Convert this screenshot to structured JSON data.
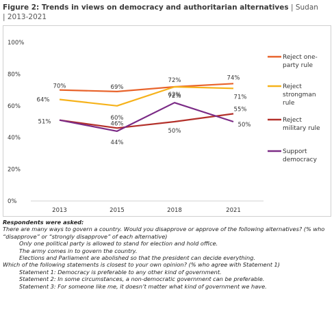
{
  "figure": {
    "title": "Figure 2: Trends in views on democracy and authoritarian alternatives",
    "subtitle_country": "| Sudan",
    "subtitle_years": "| 2013-2021"
  },
  "colors": {
    "reject_one_party": "#e8632b",
    "reject_strongman": "#f6b21a",
    "reject_military": "#b3302a",
    "support_democracy": "#7b2b86"
  },
  "chart_data": {
    "type": "line",
    "categories": [
      "2013",
      "2015",
      "2018",
      "2021"
    ],
    "ylim": [
      0,
      100
    ],
    "yticks": [
      "0%",
      "20%",
      "40%",
      "60%",
      "80%",
      "100%"
    ],
    "ytick_values": [
      0,
      20,
      40,
      60,
      80,
      100
    ],
    "grid": false,
    "legend_position": "right",
    "series": [
      {
        "key": "reject_one_party",
        "name": "Reject one-party rule",
        "legend_lines": [
          "Reject one-",
          "party rule"
        ],
        "values": [
          70,
          69,
          72,
          74
        ],
        "labels": [
          "70%",
          "69%",
          "72%",
          "74%"
        ]
      },
      {
        "key": "reject_strongman",
        "name": "Reject strongman rule",
        "legend_lines": [
          "Reject",
          "strongman",
          "rule"
        ],
        "values": [
          64,
          60,
          72,
          71
        ],
        "labels": [
          "64%",
          "60%",
          "72%",
          "71%"
        ]
      },
      {
        "key": "reject_military",
        "name": "Reject military rule",
        "legend_lines": [
          "Reject",
          "military rule"
        ],
        "values": [
          51,
          46,
          50,
          55
        ],
        "labels": [
          "51%",
          "46%",
          "50%",
          "55%"
        ]
      },
      {
        "key": "support_democracy",
        "name": "Support democracy",
        "legend_lines": [
          "Support",
          "democracy"
        ],
        "values": [
          51,
          44,
          62,
          50
        ],
        "labels": [
          "",
          "44%",
          "62%",
          "50%"
        ]
      }
    ]
  },
  "notes": {
    "heading": "Respondents were asked:",
    "q1": "There are many ways to govern a country. Would you disapprove or approve of the following alternatives? (% who “disapprove” or “strongly disapprove” of each alternative)",
    "q1_items": [
      "Only one political party is allowed to stand for election and hold office.",
      "The army comes in to govern the country.",
      "Elections and Parliament are abolished so that the president can decide everything."
    ],
    "q2": "Which of the following statements is closest to your own opinion? (% who agree with Statement 1)",
    "q2_items": [
      "Statement 1: Democracy is preferable to any other kind of government.",
      "Statement 2: In some circumstances, a non-democratic government can be preferable.",
      "Statement 3: For someone like me, it doesn’t matter what kind of government we have."
    ]
  }
}
